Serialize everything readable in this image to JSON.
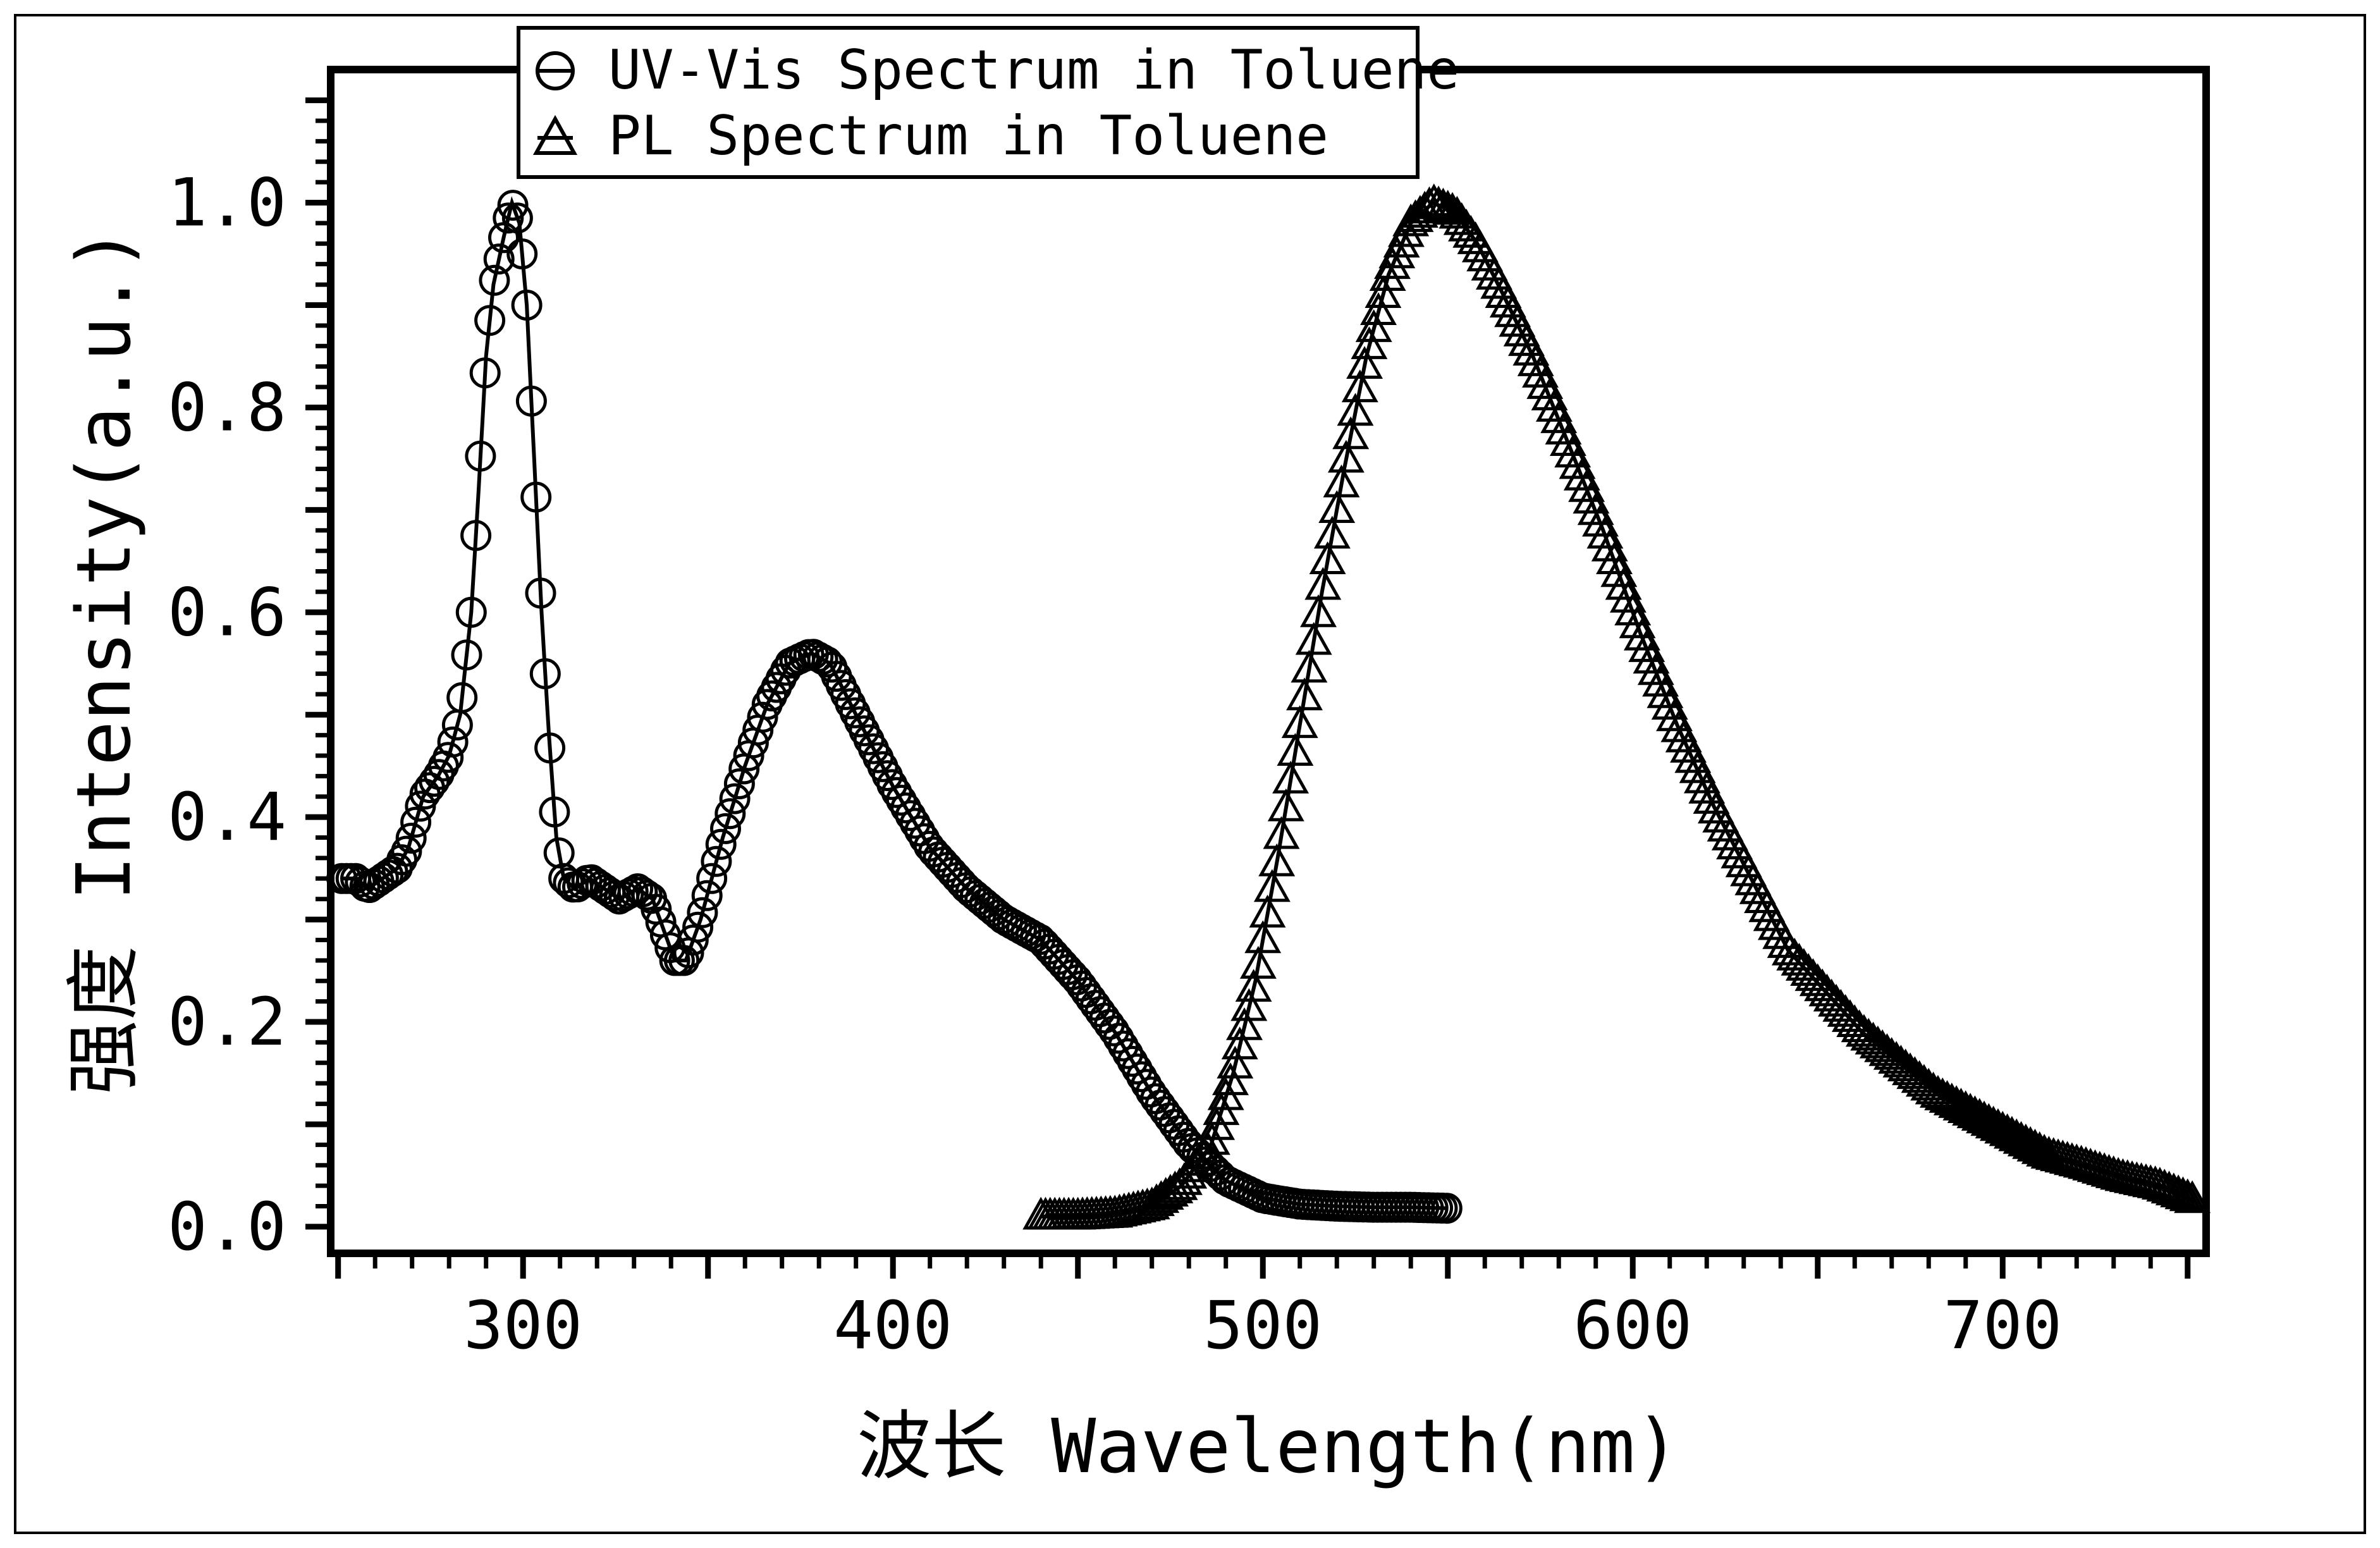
{
  "chart_data": {
    "type": "scatter",
    "title": "",
    "xlabel": "波长 Wavelength(nm)",
    "ylabel": "强度 Intensity(a.u.)",
    "xlim": [
      248,
      755
    ],
    "ylim": [
      -0.026,
      1.13
    ],
    "x_ticks": [
      300,
      400,
      500,
      600,
      700
    ],
    "y_ticks": [
      0.0,
      0.2,
      0.4,
      0.6,
      0.8,
      1.0
    ],
    "x_tick_labels": [
      "300",
      "400",
      "500",
      "600",
      "700"
    ],
    "y_tick_labels": [
      "0.0",
      "0.2",
      "0.4",
      "0.6",
      "0.8",
      "1.0"
    ],
    "grid": false,
    "legend_position": "top-left",
    "series": [
      {
        "name": "UV-Vis Spectrum in Toluene",
        "marker": "circle",
        "anchors": [
          [
            251,
            0.34
          ],
          [
            255,
            0.34
          ],
          [
            258,
            0.33
          ],
          [
            262,
            0.34
          ],
          [
            266,
            0.35
          ],
          [
            269,
            0.37
          ],
          [
            273,
            0.42
          ],
          [
            277,
            0.44
          ],
          [
            280,
            0.46
          ],
          [
            283,
            0.5
          ],
          [
            286,
            0.6
          ],
          [
            288,
            0.72
          ],
          [
            290,
            0.85
          ],
          [
            292,
            0.92
          ],
          [
            295,
            0.97
          ],
          [
            297,
            1.0
          ],
          [
            299,
            0.98
          ],
          [
            301,
            0.9
          ],
          [
            303,
            0.75
          ],
          [
            305,
            0.6
          ],
          [
            307,
            0.48
          ],
          [
            309,
            0.38
          ],
          [
            311,
            0.34
          ],
          [
            314,
            0.33
          ],
          [
            318,
            0.34
          ],
          [
            322,
            0.33
          ],
          [
            326,
            0.32
          ],
          [
            331,
            0.33
          ],
          [
            335,
            0.32
          ],
          [
            338,
            0.29
          ],
          [
            341,
            0.26
          ],
          [
            344,
            0.26
          ],
          [
            348,
            0.3
          ],
          [
            354,
            0.38
          ],
          [
            360,
            0.45
          ],
          [
            366,
            0.51
          ],
          [
            372,
            0.55
          ],
          [
            378,
            0.56
          ],
          [
            383,
            0.55
          ],
          [
            390,
            0.5
          ],
          [
            400,
            0.43
          ],
          [
            410,
            0.37
          ],
          [
            420,
            0.33
          ],
          [
            430,
            0.3
          ],
          [
            440,
            0.28
          ],
          [
            450,
            0.24
          ],
          [
            460,
            0.19
          ],
          [
            470,
            0.13
          ],
          [
            480,
            0.08
          ],
          [
            490,
            0.045
          ],
          [
            500,
            0.028
          ],
          [
            510,
            0.022
          ],
          [
            520,
            0.02
          ],
          [
            530,
            0.019
          ],
          [
            540,
            0.019
          ],
          [
            550,
            0.018
          ]
        ]
      },
      {
        "name": "PL Spectrum in Toluene",
        "marker": "triangle",
        "anchors": [
          [
            440,
            0.01
          ],
          [
            450,
            0.01
          ],
          [
            460,
            0.012
          ],
          [
            470,
            0.02
          ],
          [
            478,
            0.04
          ],
          [
            486,
            0.08
          ],
          [
            492,
            0.15
          ],
          [
            498,
            0.24
          ],
          [
            504,
            0.36
          ],
          [
            510,
            0.49
          ],
          [
            516,
            0.62
          ],
          [
            522,
            0.74
          ],
          [
            528,
            0.85
          ],
          [
            534,
            0.93
          ],
          [
            540,
            0.98
          ],
          [
            546,
            1.0
          ],
          [
            552,
            0.99
          ],
          [
            558,
            0.96
          ],
          [
            565,
            0.91
          ],
          [
            573,
            0.85
          ],
          [
            582,
            0.77
          ],
          [
            592,
            0.68
          ],
          [
            602,
            0.58
          ],
          [
            612,
            0.49
          ],
          [
            622,
            0.41
          ],
          [
            632,
            0.34
          ],
          [
            642,
            0.27
          ],
          [
            652,
            0.23
          ],
          [
            662,
            0.19
          ],
          [
            672,
            0.16
          ],
          [
            682,
            0.13
          ],
          [
            692,
            0.11
          ],
          [
            702,
            0.09
          ],
          [
            712,
            0.07
          ],
          [
            722,
            0.06
          ],
          [
            732,
            0.048
          ],
          [
            742,
            0.04
          ],
          [
            752,
            0.025
          ]
        ]
      }
    ]
  }
}
